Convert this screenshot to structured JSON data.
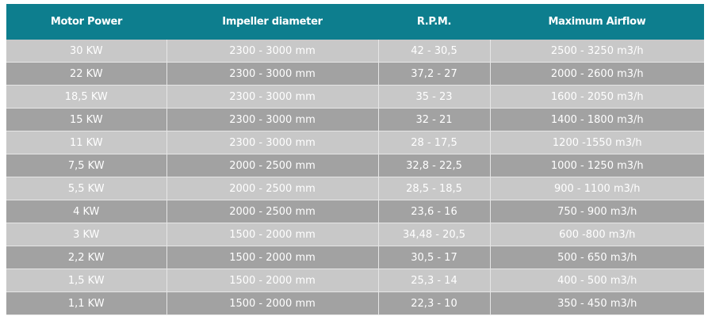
{
  "table": {
    "header": [
      "Motor Power",
      "Impeller diameter",
      "R.P.M.",
      "Maximum Airflow"
    ],
    "rows": [
      [
        "30 KW",
        "2300 - 3000 mm",
        "42 - 30,5",
        "2500 - 3250 m3/h"
      ],
      [
        "22 KW",
        "2300 - 3000 mm",
        "37,2 - 27",
        "2000 - 2600 m3/h"
      ],
      [
        "18,5 KW",
        "2300 - 3000 mm",
        "35 - 23",
        "1600 - 2050 m3/h"
      ],
      [
        "15 KW",
        "2300 - 3000 mm",
        "32 - 21",
        "1400 - 1800 m3/h"
      ],
      [
        "11 KW",
        "2300 - 3000 mm",
        "28 - 17,5",
        "1200 -1550 m3/h"
      ],
      [
        "7,5 KW",
        "2000 - 2500 mm",
        "32,8 - 22,5",
        "1000 - 1250 m3/h"
      ],
      [
        "5,5 KW",
        "2000 - 2500 mm",
        "28,5 - 18,5",
        "900 - 1100 m3/h"
      ],
      [
        "4 KW",
        "2000 - 2500 mm",
        "23,6 - 16",
        "750 - 900 m3/h"
      ],
      [
        "3 KW",
        "1500 - 2000 mm",
        "34,48 - 20,5",
        "600 -800 m3/h"
      ],
      [
        "2,2 KW",
        "1500 - 2000 mm",
        "30,5 - 17",
        "500 - 650 m3/h"
      ],
      [
        "1,5 KW",
        "1500 - 2000 mm",
        "25,3 - 14",
        "400 - 500 m3/h"
      ],
      [
        "1,1 KW",
        "1500 - 2000 mm",
        "22,3 - 10",
        "350 - 450 m3/h"
      ]
    ]
  }
}
